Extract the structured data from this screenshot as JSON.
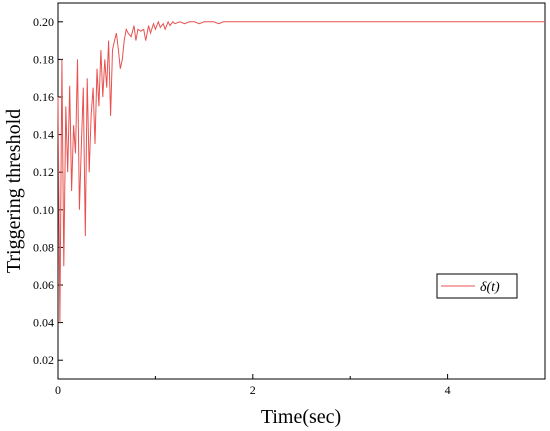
{
  "chart_data": {
    "type": "line",
    "xlabel": "Time(sec)",
    "ylabel": "Triggering threshold",
    "xlim": [
      0,
      5
    ],
    "ylim": [
      0.01,
      0.21
    ],
    "xticks": [
      0,
      2,
      4
    ],
    "yticks": [
      0.02,
      0.04,
      0.06,
      0.08,
      0.1,
      0.12,
      0.14,
      0.16,
      0.18,
      0.2
    ],
    "xtick_labels": [
      "0",
      "2",
      "4"
    ],
    "ytick_labels": [
      "0.02",
      "0.04",
      "0.06",
      "0.08",
      "0.10",
      "0.12",
      "0.14",
      "0.16",
      "0.18",
      "0.20"
    ],
    "grid": false,
    "legend": {
      "position": "center-right",
      "entries": [
        "δ(t)"
      ]
    },
    "series": [
      {
        "name": "δ(t)",
        "color": "#e8514f",
        "x": [
          0,
          0.02,
          0.04,
          0.06,
          0.08,
          0.1,
          0.12,
          0.14,
          0.16,
          0.18,
          0.2,
          0.22,
          0.24,
          0.26,
          0.28,
          0.3,
          0.32,
          0.34,
          0.36,
          0.38,
          0.4,
          0.42,
          0.44,
          0.46,
          0.48,
          0.5,
          0.52,
          0.54,
          0.56,
          0.58,
          0.6,
          0.62,
          0.64,
          0.66,
          0.68,
          0.7,
          0.72,
          0.75,
          0.78,
          0.8,
          0.82,
          0.85,
          0.88,
          0.9,
          0.93,
          0.95,
          0.98,
          1.0,
          1.03,
          1.05,
          1.08,
          1.1,
          1.13,
          1.15,
          1.18,
          1.2,
          1.25,
          1.3,
          1.35,
          1.4,
          1.45,
          1.5,
          1.55,
          1.6,
          1.65,
          1.7,
          1.8,
          2.0,
          3.0,
          4.0,
          5.0
        ],
        "values": [
          0.16,
          0.04,
          0.18,
          0.07,
          0.155,
          0.12,
          0.166,
          0.11,
          0.145,
          0.13,
          0.18,
          0.1,
          0.135,
          0.165,
          0.086,
          0.17,
          0.12,
          0.15,
          0.165,
          0.135,
          0.175,
          0.155,
          0.185,
          0.16,
          0.18,
          0.165,
          0.19,
          0.15,
          0.185,
          0.19,
          0.194,
          0.185,
          0.175,
          0.18,
          0.19,
          0.196,
          0.194,
          0.192,
          0.198,
          0.19,
          0.196,
          0.195,
          0.196,
          0.19,
          0.198,
          0.194,
          0.199,
          0.196,
          0.2,
          0.197,
          0.199,
          0.196,
          0.2,
          0.198,
          0.2,
          0.199,
          0.2,
          0.199,
          0.2,
          0.2,
          0.199,
          0.2,
          0.2,
          0.2,
          0.199,
          0.2,
          0.2,
          0.2,
          0.2,
          0.2,
          0.2
        ]
      }
    ]
  }
}
